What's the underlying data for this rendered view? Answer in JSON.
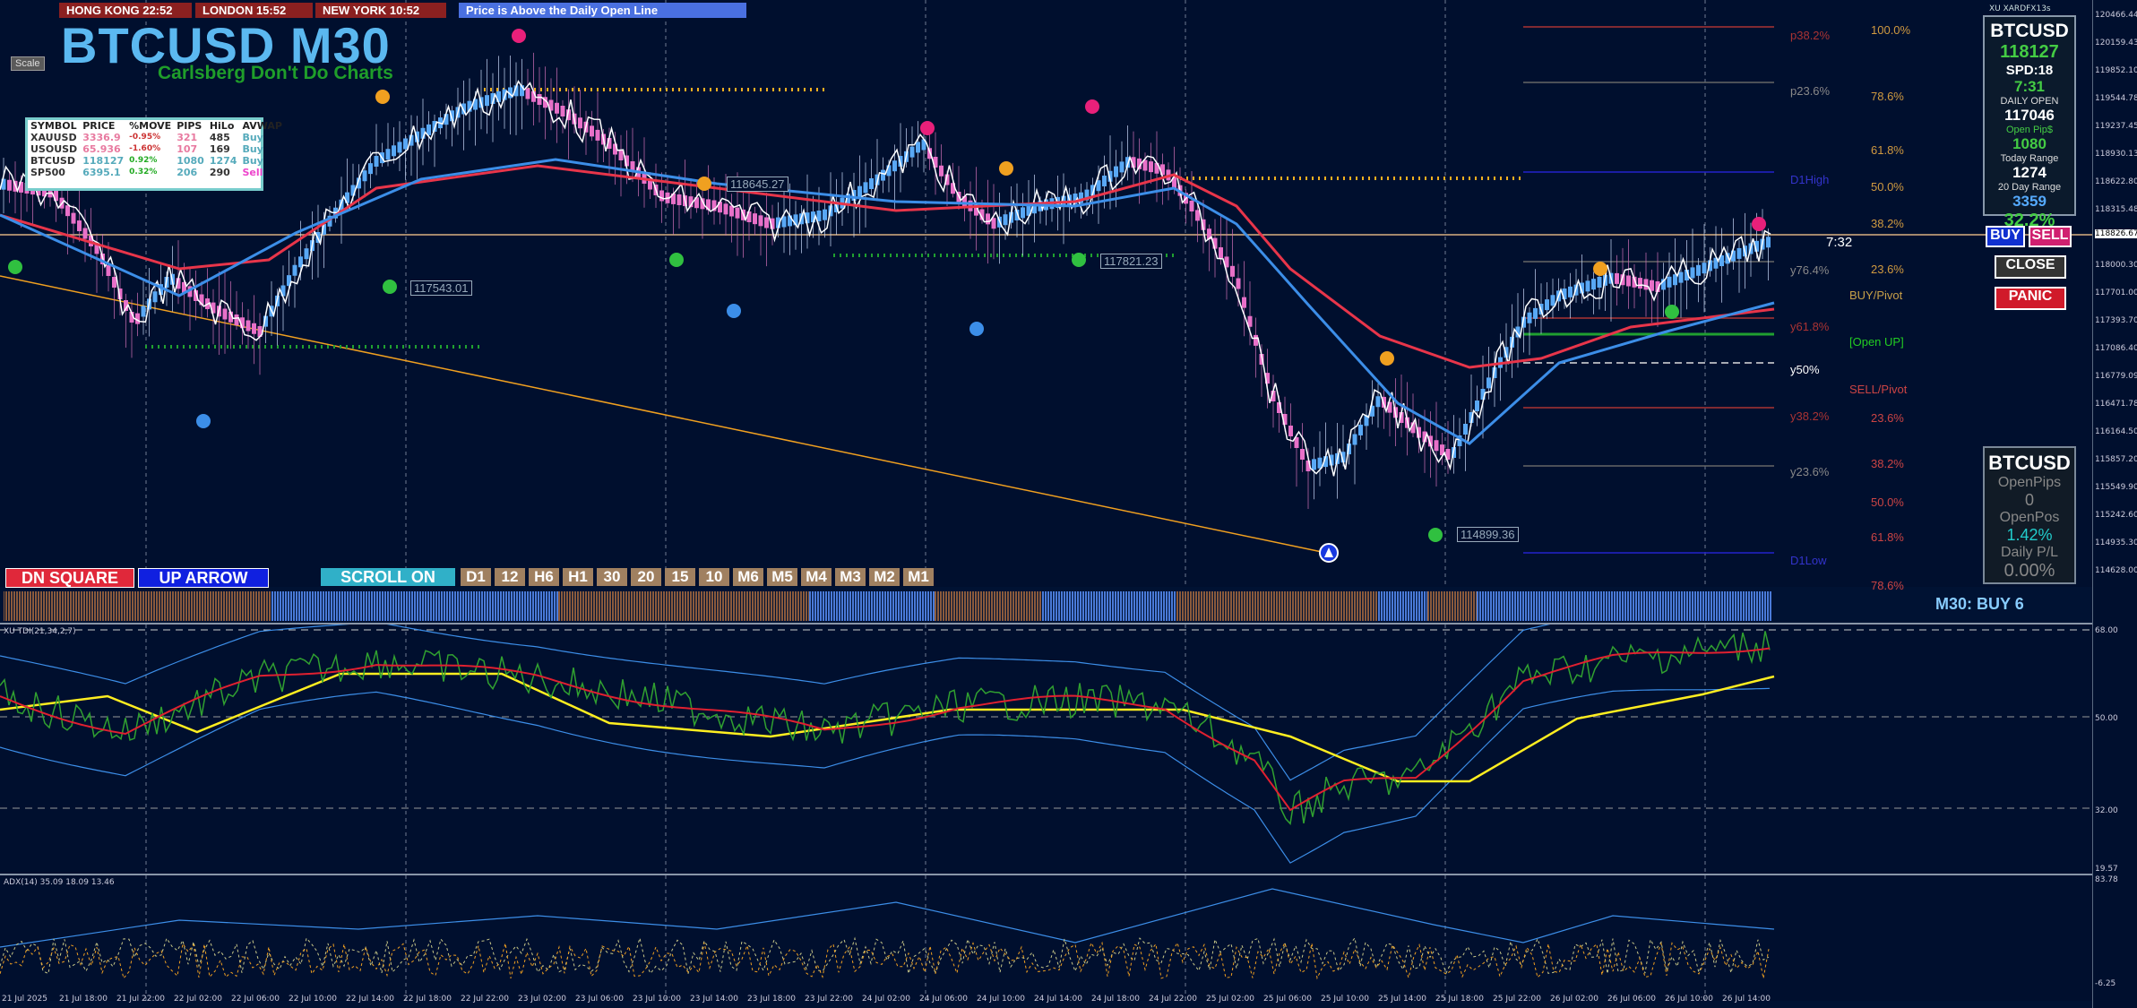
{
  "header": {
    "sessions": [
      {
        "label": "HONG KONG 22:52"
      },
      {
        "label": "LONDON  15:52"
      },
      {
        "label": "NEW YORK  10:52"
      }
    ],
    "status": "Price is Above the Daily Open Line",
    "symbol_title": "BTCUSD M30",
    "watermark": "Carlsberg Don't Do Charts",
    "scale_button": "Scale",
    "broker": "XU XARDFX13s"
  },
  "watchlist": {
    "columns": [
      "SYMBOL",
      "PRICE",
      "%MOVE",
      "PIPS",
      "HiLo",
      "AVWAP"
    ],
    "rows": [
      {
        "symbol": "XAUUSD",
        "price": "3336.9",
        "move": "-0.95%",
        "pips": "321",
        "hilo": "485",
        "avwap": "Buy"
      },
      {
        "symbol": "USOUSD",
        "price": "65.936",
        "move": "-1.60%",
        "pips": "107",
        "hilo": "169",
        "avwap": "Buy"
      },
      {
        "symbol": "BTCUSD",
        "price": "118127",
        "move": "0.92%",
        "pips": "1080",
        "hilo": "1274",
        "avwap": "Buy"
      },
      {
        "symbol": "SP500",
        "price": "6395.1",
        "move": "0.32%",
        "pips": "206",
        "hilo": "290",
        "avwap": "Sell"
      }
    ]
  },
  "price_labels": {
    "a": "118645.27",
    "b": "117543.01",
    "c": "117821.23",
    "d": "114899.36"
  },
  "levels": {
    "p382": "p38.2%",
    "p236": "p23.6%",
    "d1high": "D1High",
    "y764": "y76.4%",
    "y618": "y61.8%",
    "y50": "y50%",
    "y382": "y38.2%",
    "y236": "y23.6%",
    "d1low": "D1Low",
    "buy_pivot": "BUY/Pivot",
    "open_up": "[Open UP]",
    "sell_pivot": "SELL/Pivot",
    "timer": "7:32",
    "fib_right": [
      "100.0%",
      "78.6%",
      "61.8%",
      "50.0%",
      "38.2%",
      "23.6%",
      "23.6%",
      "38.2%",
      "50.0%",
      "61.8%",
      "78.6%"
    ]
  },
  "info_panel": {
    "symbol": "BTCUSD",
    "price": "118127",
    "spread": "SPD:18",
    "timer": "7:31",
    "daily_open_label": "DAILY OPEN",
    "daily_open": "117046",
    "open_pips_label": "Open Pip$",
    "open_pips": "1080",
    "today_range_label": "Today Range",
    "today_range": "1274",
    "day20_label": "20 Day Range",
    "day20": "3359",
    "pct": "32.2%"
  },
  "trade_panel": {
    "buy": "BUY",
    "sell": "SELL",
    "close": "CLOSE",
    "panic": "PANIC"
  },
  "position_panel": {
    "symbol": "BTCUSD",
    "open_pips_label": "OpenPips",
    "open_pips": "0",
    "open_pos_label": "OpenPos",
    "open_pos": "1.42%",
    "daily_pl_label": "Daily P/L",
    "daily_pl": "0.00%"
  },
  "buttons": {
    "dn_square": "DN SQUARE",
    "up_arrow": "UP ARROW",
    "scroll": "SCROLL ON",
    "timeframes": [
      "D1",
      "12",
      "H6",
      "H1",
      "30",
      "20",
      "15",
      "10",
      "M6",
      "M5",
      "M4",
      "M3",
      "M2",
      "M1"
    ]
  },
  "signal_label": "M30: BUY 6",
  "indicators": {
    "tdi_title": "XU TDI(21,34,2,7)",
    "adx_title": "ADX(14) 35.09 18.09 13.46"
  },
  "price_axis": [
    "120466.44",
    "120159.43",
    "119852.10",
    "119544.78",
    "119237.45",
    "118930.13",
    "118622.80",
    "118315.48",
    "118826.67",
    "118000.30",
    "117701.00",
    "117393.70",
    "117086.40",
    "116779.09",
    "116471.78",
    "116164.50",
    "115857.20",
    "115549.90",
    "115242.60",
    "114935.30",
    "114628.00"
  ],
  "tdi_axis": [
    "68.00",
    "50.00",
    "32.00",
    "19.57"
  ],
  "adx_axis": [
    "83.78",
    "-6.25"
  ],
  "time_axis": [
    "21 Jul 2025",
    "21 Jul 18:00",
    "21 Jul 22:00",
    "22 Jul 02:00",
    "22 Jul 06:00",
    "22 Jul 10:00",
    "22 Jul 14:00",
    "22 Jul 18:00",
    "22 Jul 22:00",
    "23 Jul 02:00",
    "23 Jul 06:00",
    "23 Jul 10:00",
    "23 Jul 14:00",
    "23 Jul 18:00",
    "23 Jul 22:00",
    "24 Jul 02:00",
    "24 Jul 06:00",
    "24 Jul 10:00",
    "24 Jul 14:00",
    "24 Jul 18:00",
    "24 Jul 22:00",
    "25 Jul 02:00",
    "25 Jul 06:00",
    "25 Jul 10:00",
    "25 Jul 14:00",
    "25 Jul 18:00",
    "25 Jul 22:00",
    "26 Jul 02:00",
    "26 Jul 06:00",
    "26 Jul 10:00",
    "26 Jul 14:00"
  ],
  "colors": {
    "background": "#000f2e",
    "ma_red": "#e8354a",
    "ma_blue": "#3c8ee8",
    "candle_up": "#59a8f5",
    "candle_down": "#e870c8",
    "trend_orange": "#f0a020"
  }
}
